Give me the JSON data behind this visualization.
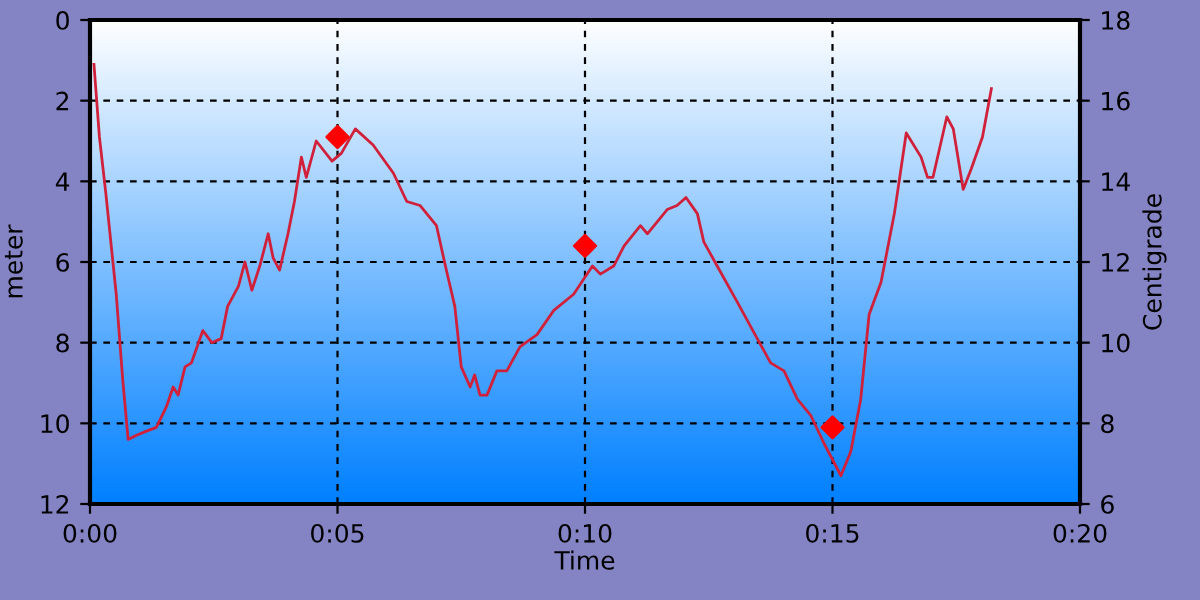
{
  "chart_data": {
    "type": "line",
    "xlabel": "Time",
    "ylabel": "meter",
    "y2label": "Centigrade",
    "xlim": [
      0,
      20
    ],
    "xticks": [
      {
        "value": 0,
        "label": "0:00"
      },
      {
        "value": 5,
        "label": "0:05"
      },
      {
        "value": 10,
        "label": "0:10"
      },
      {
        "value": 15,
        "label": "0:15"
      },
      {
        "value": 20,
        "label": "0:20"
      }
    ],
    "ylim": [
      12,
      0
    ],
    "yticks": [
      0,
      2,
      4,
      6,
      8,
      10,
      12
    ],
    "y2lim": [
      6,
      18
    ],
    "y2ticks": [
      6,
      8,
      10,
      12,
      14,
      16,
      18
    ],
    "grid": true,
    "series": [
      {
        "color": "#d0203a",
        "marker": "none",
        "line_style": "solid",
        "x": [
          0.08,
          0.19,
          0.32,
          0.53,
          0.66,
          0.77,
          0.93,
          1.13,
          1.34,
          1.54,
          1.68,
          1.78,
          1.92,
          2.05,
          2.28,
          2.46,
          2.65,
          2.78,
          3.0,
          3.13,
          3.27,
          3.43,
          3.6,
          3.7,
          3.83,
          4.0,
          4.13,
          4.27,
          4.37,
          4.57,
          4.89,
          5.08,
          5.36,
          5.72,
          6.13,
          6.4,
          6.67,
          7.0,
          7.18,
          7.37,
          7.5,
          7.68,
          7.77,
          7.88,
          8.02,
          8.22,
          8.42,
          8.69,
          9.03,
          9.37,
          9.77,
          10.15,
          10.31,
          10.58,
          10.79,
          11.12,
          11.26,
          11.66,
          11.86,
          12.04,
          12.27,
          12.4,
          12.67,
          13.08,
          13.48,
          13.75,
          14.02,
          14.29,
          14.56,
          14.83,
          15.17,
          15.37,
          15.57,
          15.74,
          15.98,
          16.25,
          16.49,
          16.79,
          16.92,
          17.03,
          17.31,
          17.44,
          17.64,
          17.8,
          18.03,
          18.21
        ],
        "values": [
          1.1,
          2.9,
          4.3,
          6.8,
          8.9,
          10.4,
          10.3,
          10.2,
          10.1,
          9.6,
          9.1,
          9.3,
          8.6,
          8.5,
          7.7,
          8.0,
          7.9,
          7.1,
          6.6,
          6.0,
          6.7,
          6.1,
          5.3,
          5.9,
          6.2,
          5.3,
          4.5,
          3.4,
          3.9,
          3.0,
          3.5,
          3.3,
          2.7,
          3.1,
          3.8,
          4.5,
          4.6,
          5.1,
          6.1,
          7.1,
          8.6,
          9.1,
          8.8,
          9.3,
          9.3,
          8.7,
          8.7,
          8.1,
          7.8,
          7.2,
          6.8,
          6.1,
          6.3,
          6.1,
          5.6,
          5.1,
          5.3,
          4.7,
          4.6,
          4.4,
          4.8,
          5.5,
          6.1,
          7.0,
          7.9,
          8.5,
          8.7,
          9.4,
          9.8,
          10.5,
          11.3,
          10.7,
          9.4,
          7.3,
          6.5,
          4.8,
          2.8,
          3.4,
          3.9,
          3.9,
          2.4,
          2.7,
          4.2,
          3.7,
          2.9,
          1.7
        ]
      },
      {
        "type": "scatter",
        "axis": "y2",
        "color": "#ff0000",
        "marker": "diamond",
        "x": [
          5,
          10,
          15
        ],
        "values": [
          15.1,
          12.4,
          7.9
        ]
      }
    ]
  }
}
